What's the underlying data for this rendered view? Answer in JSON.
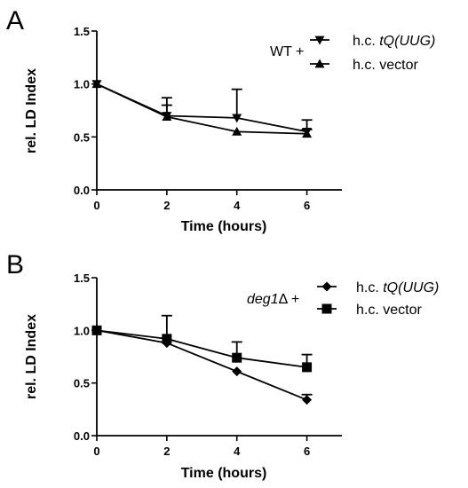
{
  "chart_data": [
    {
      "panel": "A",
      "type": "line",
      "xlabel": "Time (hours)",
      "ylabel": "rel. LD Index",
      "xlim": [
        0,
        7
      ],
      "ylim": [
        0.0,
        1.5
      ],
      "xticks": [
        "0",
        "2",
        "4",
        "6"
      ],
      "yticks": [
        "0.0",
        "0.5",
        "1.0",
        "1.5"
      ],
      "grid": false,
      "legend_position": "top-right",
      "legend_prefix": "WT +",
      "series": [
        {
          "name_plain": "h.c. ",
          "name_italic": "tQ(UUG)",
          "marker": "triangle-down",
          "x": [
            0,
            2,
            4,
            6
          ],
          "y": [
            1.0,
            0.7,
            0.68,
            0.55
          ],
          "err": [
            0.0,
            0.1,
            0.27,
            0.11
          ]
        },
        {
          "name_plain": "h.c. vector",
          "name_italic": "",
          "marker": "triangle-up",
          "x": [
            0,
            2,
            4,
            6
          ],
          "y": [
            1.0,
            0.69,
            0.55,
            0.53
          ],
          "err": [
            0.0,
            0.18,
            0.0,
            0.04
          ]
        }
      ]
    },
    {
      "panel": "B",
      "type": "line",
      "xlabel": "Time (hours)",
      "ylabel": "rel. LD Index",
      "xlim": [
        0,
        7
      ],
      "ylim": [
        0.0,
        1.5
      ],
      "xticks": [
        "0",
        "2",
        "4",
        "6"
      ],
      "yticks": [
        "0.0",
        "0.5",
        "1.0",
        "1.5"
      ],
      "grid": false,
      "legend_position": "top-right",
      "legend_prefix_italic": "deg1",
      "legend_prefix_plain": "Δ +",
      "series": [
        {
          "name_plain": "h.c. ",
          "name_italic": "tQ(UUG)",
          "marker": "diamond",
          "x": [
            0,
            2,
            4,
            6
          ],
          "y": [
            1.0,
            0.88,
            0.61,
            0.34
          ],
          "err": [
            0.0,
            0.0,
            0.0,
            0.05
          ]
        },
        {
          "name_plain": "h.c. vector",
          "name_italic": "",
          "marker": "square",
          "x": [
            0,
            2,
            4,
            6
          ],
          "y": [
            1.0,
            0.92,
            0.74,
            0.65
          ],
          "err": [
            0.0,
            0.22,
            0.15,
            0.12
          ]
        }
      ]
    }
  ]
}
